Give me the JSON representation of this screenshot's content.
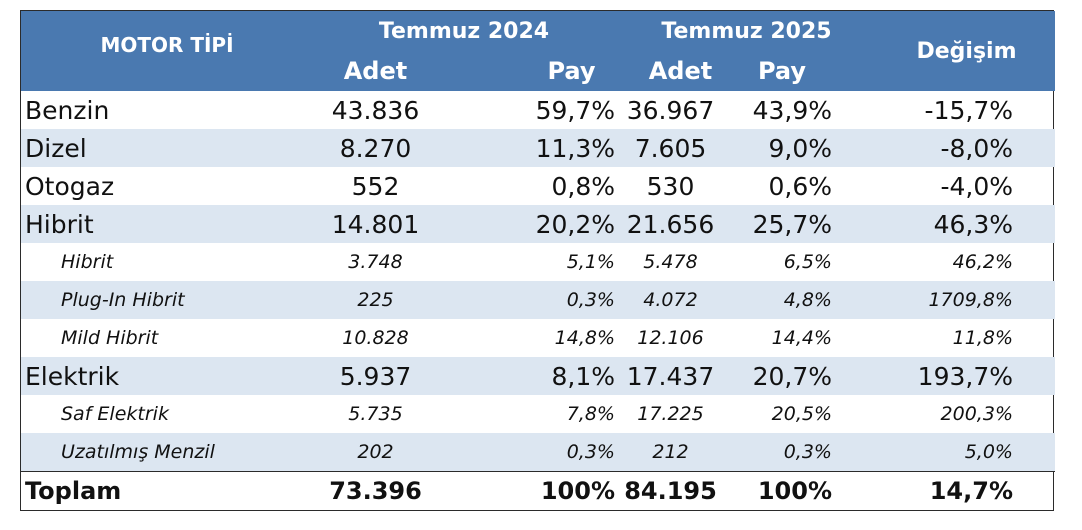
{
  "header": {
    "motor_tipi": "MOTOR TİPİ",
    "period1": "Temmuz 2024",
    "period2": "Temmuz 2025",
    "change": "Değişim",
    "adet": "Adet",
    "pay": "Pay"
  },
  "rows": [
    {
      "label": "Benzin",
      "adet2024": "43.836",
      "pay2024": "59,7%",
      "adet2025": "36.967",
      "pay2025": "43,9%",
      "change": "-15,7%"
    },
    {
      "label": "Dizel",
      "adet2024": "8.270",
      "pay2024": "11,3%",
      "adet2025": "7.605",
      "pay2025": "9,0%",
      "change": "-8,0%"
    },
    {
      "label": "Otogaz",
      "adet2024": "552",
      "pay2024": "0,8%",
      "adet2025": "530",
      "pay2025": "0,6%",
      "change": "-4,0%"
    },
    {
      "label": "Hibrit",
      "adet2024": "14.801",
      "pay2024": "20,2%",
      "adet2025": "21.656",
      "pay2025": "25,7%",
      "change": "46,3%"
    },
    {
      "label": "Hibrit",
      "adet2024": "3.748",
      "pay2024": "5,1%",
      "adet2025": "5.478",
      "pay2025": "6,5%",
      "change": "46,2%"
    },
    {
      "label": "Plug-In Hibrit",
      "adet2024": "225",
      "pay2024": "0,3%",
      "adet2025": "4.072",
      "pay2025": "4,8%",
      "change": "1709,8%"
    },
    {
      "label": "Mild Hibrit",
      "adet2024": "10.828",
      "pay2024": "14,8%",
      "adet2025": "12.106",
      "pay2025": "14,4%",
      "change": "11,8%"
    },
    {
      "label": "Elektrik",
      "adet2024": "5.937",
      "pay2024": "8,1%",
      "adet2025": "17.437",
      "pay2025": "20,7%",
      "change": "193,7%"
    },
    {
      "label": "Saf Elektrik",
      "adet2024": "5.735",
      "pay2024": "7,8%",
      "adet2025": "17.225",
      "pay2025": "20,5%",
      "change": "200,3%"
    },
    {
      "label": "Uzatılmış Menzil",
      "adet2024": "202",
      "pay2024": "0,3%",
      "adet2025": "212",
      "pay2025": "0,3%",
      "change": "5,0%"
    }
  ],
  "total": {
    "label": "Toplam",
    "adet2024": "73.396",
    "pay2024": "100%",
    "adet2025": "84.195",
    "pay2025": "100%",
    "change": "14,7%"
  },
  "colors": {
    "header_bg": "#4a79b0",
    "header_text": "#ffffff",
    "row_shade": "#dce6f1",
    "border": "#2b2b2b"
  }
}
